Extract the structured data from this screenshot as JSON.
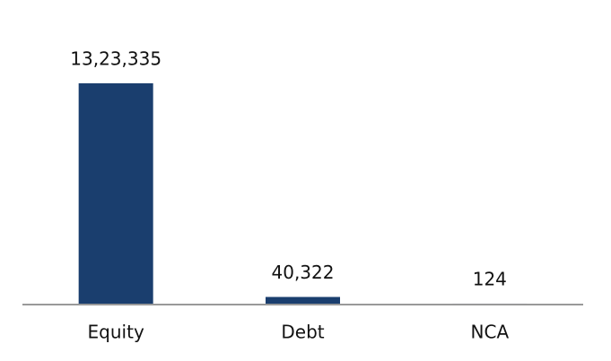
{
  "chart_data": {
    "type": "bar",
    "categories": [
      "Equity",
      "Debt",
      "NCA"
    ],
    "values": [
      1323335,
      40322,
      124
    ],
    "value_labels": [
      "13,23,335",
      "40,322",
      "124"
    ],
    "color": "#1a3e6e"
  }
}
